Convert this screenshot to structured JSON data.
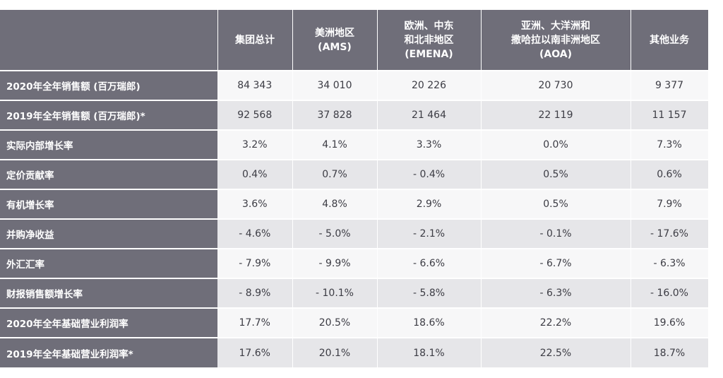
{
  "header": {
    "col1": [
      "集团总计"
    ],
    "col2": [
      "美洲地区",
      "(AMS)"
    ],
    "col3": [
      "欧洲、中东",
      "和北非地区",
      "(EMENA)"
    ],
    "col4": [
      "亚洲、大洋洲和",
      "撒哈拉以南非洲地区",
      "(AOA)"
    ],
    "col5": [
      "其他业务"
    ]
  },
  "rows": [
    {
      "label": "2020年全年销售额 (百万瑞郎)",
      "values": [
        "84 343",
        "34 010",
        "20 226",
        "20 730",
        "9 377"
      ]
    },
    {
      "label": "2019年全年销售额 (百万瑞郎)*",
      "values": [
        "92 568",
        "37 828",
        "21 464",
        "22 119",
        "11 157"
      ]
    },
    {
      "label": "实际内部增长率",
      "values": [
        "3.2%",
        "4.1%",
        "3.3%",
        "0.0%",
        "7.3%"
      ]
    },
    {
      "label": "定价贡献率",
      "values": [
        "0.4%",
        "0.7%",
        "- 0.4%",
        "0.5%",
        "0.6%"
      ]
    },
    {
      "label": "有机增长率",
      "values": [
        "3.6%",
        "4.8%",
        "2.9%",
        "0.5%",
        "7.9%"
      ]
    },
    {
      "label": "并购净收益",
      "values": [
        "- 4.6%",
        "- 5.0%",
        "- 2.1%",
        "- 0.1%",
        "- 17.6%"
      ]
    },
    {
      "label": "外汇汇率",
      "values": [
        "- 7.9%",
        "- 9.9%",
        "- 6.6%",
        "- 6.7%",
        "- 6.3%"
      ]
    },
    {
      "label": "财报销售额增长率",
      "values": [
        "- 8.9%",
        "- 10.1%",
        "- 5.8%",
        "- 6.3%",
        "- 16.0%"
      ]
    },
    {
      "label": "2020年全年基础营业利润率",
      "values": [
        "17.7%",
        "20.5%",
        "18.6%",
        "22.2%",
        "19.6%"
      ]
    },
    {
      "label": "2019年全年基础营业利润率*",
      "values": [
        "17.6%",
        "20.1%",
        "18.1%",
        "22.5%",
        "18.7%"
      ]
    }
  ]
}
